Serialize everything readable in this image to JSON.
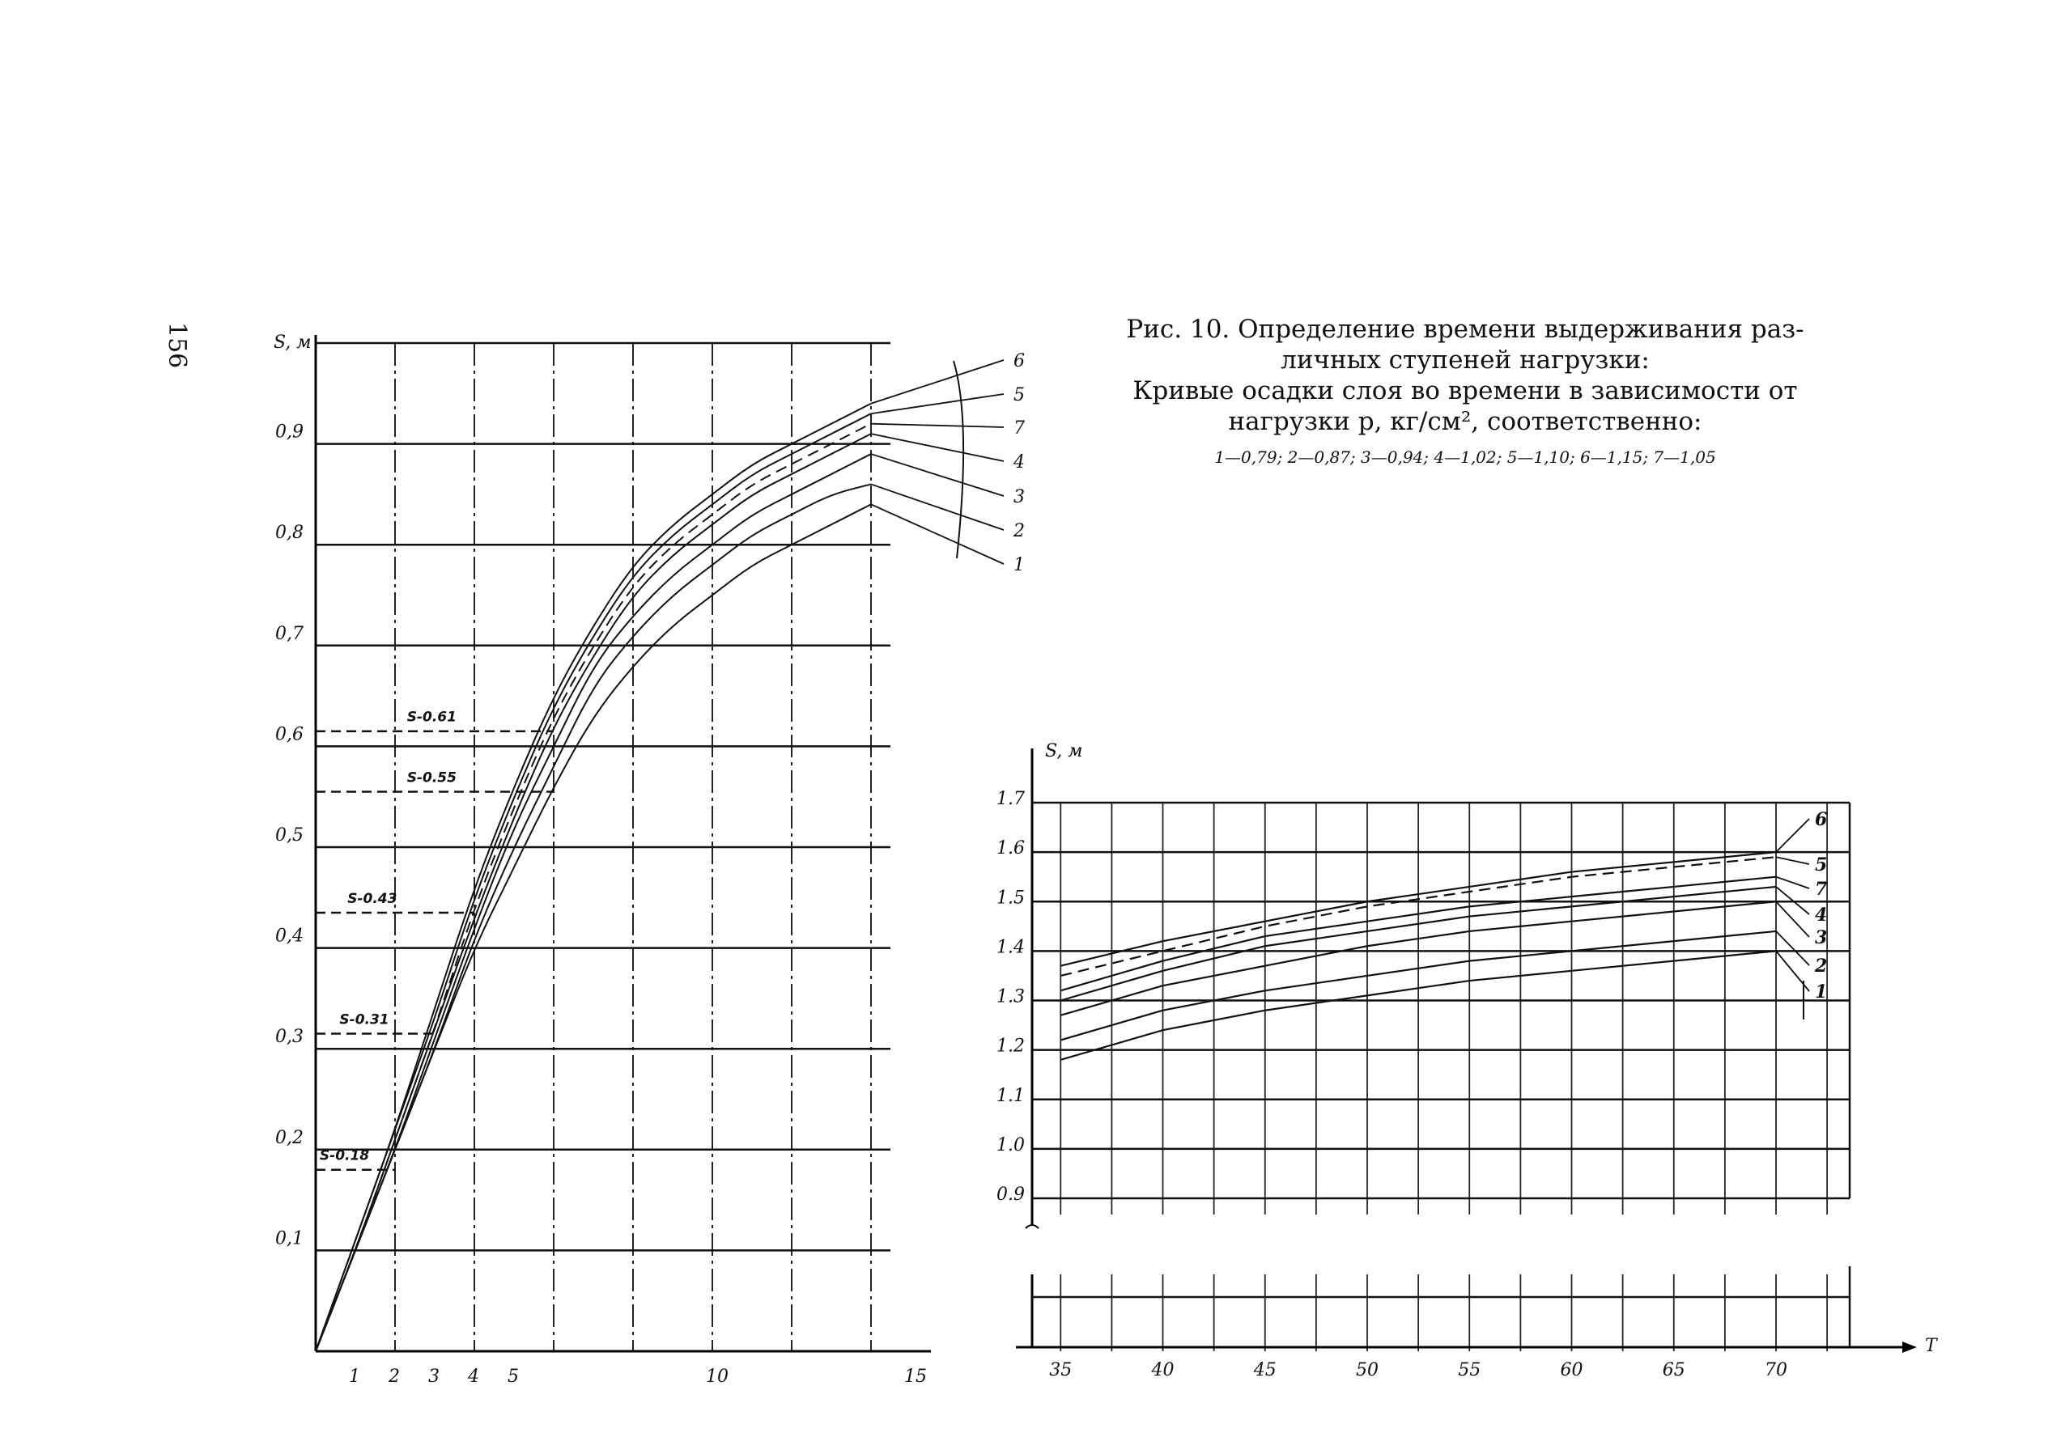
{
  "page_number": "156",
  "caption": {
    "title_line1": "Рис. 10. Определение времени выдерживания раз-",
    "title_line2": "личных ступеней нагрузки:",
    "text_line1": "Кривые осадки слоя во времени в зависимости от",
    "text_line2": "нагрузки р, кг/см², соответственно:",
    "legend": "1—0,79; 2—0,87; 3—0,94; 4—1,02; 5—1,10; 6—1,15; 7—1,05"
  },
  "chart_data": [
    {
      "type": "line",
      "ylabel": "S, м",
      "xlim": [
        0,
        15
      ],
      "ylim": [
        0,
        1.0
      ],
      "x_ticks": [
        "1",
        "2",
        "3",
        "4",
        "5",
        "10",
        "15"
      ],
      "x_tick_values": [
        1,
        2,
        3,
        4,
        5,
        10,
        15
      ],
      "y_ticks": [
        "0,1",
        "0,2",
        "0,3",
        "0,4",
        "0,5",
        "0,6",
        "0,7",
        "0,8",
        "0,9"
      ],
      "y_tick_values": [
        0.1,
        0.2,
        0.3,
        0.4,
        0.5,
        0.6,
        0.7,
        0.8,
        0.9
      ],
      "grid": true,
      "x": [
        0,
        1,
        2,
        3,
        4,
        5,
        6,
        7,
        8,
        9,
        10,
        11,
        12,
        13,
        14
      ],
      "series": [
        {
          "name": "1",
          "values": [
            0,
            0.1,
            0.2,
            0.3,
            0.4,
            0.48,
            0.56,
            0.63,
            0.68,
            0.72,
            0.75,
            0.78,
            0.8,
            0.82,
            0.84
          ],
          "dashed": false
        },
        {
          "name": "2",
          "values": [
            0,
            0.1,
            0.2,
            0.3,
            0.41,
            0.5,
            0.58,
            0.66,
            0.71,
            0.75,
            0.78,
            0.81,
            0.83,
            0.85,
            0.86
          ],
          "dashed": false
        },
        {
          "name": "3",
          "values": [
            0,
            0.1,
            0.2,
            0.31,
            0.42,
            0.52,
            0.6,
            0.68,
            0.73,
            0.77,
            0.8,
            0.83,
            0.85,
            0.87,
            0.89
          ],
          "dashed": false
        },
        {
          "name": "4",
          "values": [
            0,
            0.1,
            0.21,
            0.32,
            0.43,
            0.53,
            0.62,
            0.69,
            0.75,
            0.79,
            0.82,
            0.85,
            0.87,
            0.89,
            0.91
          ],
          "dashed": false
        },
        {
          "name": "7",
          "values": [
            0,
            0.1,
            0.21,
            0.32,
            0.44,
            0.54,
            0.63,
            0.7,
            0.76,
            0.8,
            0.83,
            0.86,
            0.88,
            0.9,
            0.92
          ],
          "dashed": true
        },
        {
          "name": "5",
          "values": [
            0,
            0.11,
            0.22,
            0.33,
            0.45,
            0.55,
            0.64,
            0.71,
            0.77,
            0.81,
            0.84,
            0.87,
            0.89,
            0.91,
            0.93
          ],
          "dashed": false
        },
        {
          "name": "6",
          "values": [
            0,
            0.11,
            0.22,
            0.34,
            0.46,
            0.56,
            0.65,
            0.72,
            0.78,
            0.82,
            0.85,
            0.88,
            0.9,
            0.92,
            0.94
          ],
          "dashed": false
        }
      ],
      "annotations": [
        {
          "text": "S-0.61",
          "value": 0.615
        },
        {
          "text": "S-0.55",
          "value": 0.555
        },
        {
          "text": "S-0.43",
          "value": 0.435
        },
        {
          "text": "S-0.31",
          "value": 0.315
        },
        {
          "text": "S-0.18",
          "value": 0.18
        }
      ]
    },
    {
      "type": "line",
      "ylabel": "S, м",
      "xlabel": "T",
      "xlim": [
        34,
        74
      ],
      "ylim": [
        0.9,
        1.7
      ],
      "x_ticks": [
        "35",
        "40",
        "45",
        "50",
        "55",
        "60",
        "65",
        "70"
      ],
      "x_tick_values": [
        35,
        40,
        45,
        50,
        55,
        60,
        65,
        70
      ],
      "y_ticks": [
        "0.9",
        "1.0",
        "1.1",
        "1.2",
        "1.3",
        "1.4",
        "1.5",
        "1.6",
        "1.7"
      ],
      "y_tick_values": [
        0.9,
        1.0,
        1.1,
        1.2,
        1.3,
        1.4,
        1.5,
        1.6,
        1.7
      ],
      "grid": true,
      "x": [
        35,
        40,
        45,
        50,
        55,
        60,
        65,
        70
      ],
      "series": [
        {
          "name": "1",
          "values": [
            1.18,
            1.24,
            1.28,
            1.31,
            1.34,
            1.36,
            1.38,
            1.4
          ],
          "dashed": false
        },
        {
          "name": "2",
          "values": [
            1.22,
            1.28,
            1.32,
            1.35,
            1.38,
            1.4,
            1.42,
            1.44
          ],
          "dashed": false
        },
        {
          "name": "3",
          "values": [
            1.27,
            1.33,
            1.37,
            1.41,
            1.44,
            1.46,
            1.48,
            1.5
          ],
          "dashed": false
        },
        {
          "name": "4",
          "values": [
            1.3,
            1.36,
            1.41,
            1.44,
            1.47,
            1.49,
            1.51,
            1.53
          ],
          "dashed": false
        },
        {
          "name": "7",
          "values": [
            1.32,
            1.38,
            1.43,
            1.46,
            1.49,
            1.51,
            1.53,
            1.55
          ],
          "dashed": false
        },
        {
          "name": "5",
          "values": [
            1.35,
            1.4,
            1.45,
            1.49,
            1.52,
            1.55,
            1.57,
            1.59
          ],
          "dashed": true
        },
        {
          "name": "6",
          "values": [
            1.37,
            1.42,
            1.46,
            1.5,
            1.53,
            1.56,
            1.58,
            1.6
          ],
          "dashed": false
        }
      ]
    }
  ]
}
